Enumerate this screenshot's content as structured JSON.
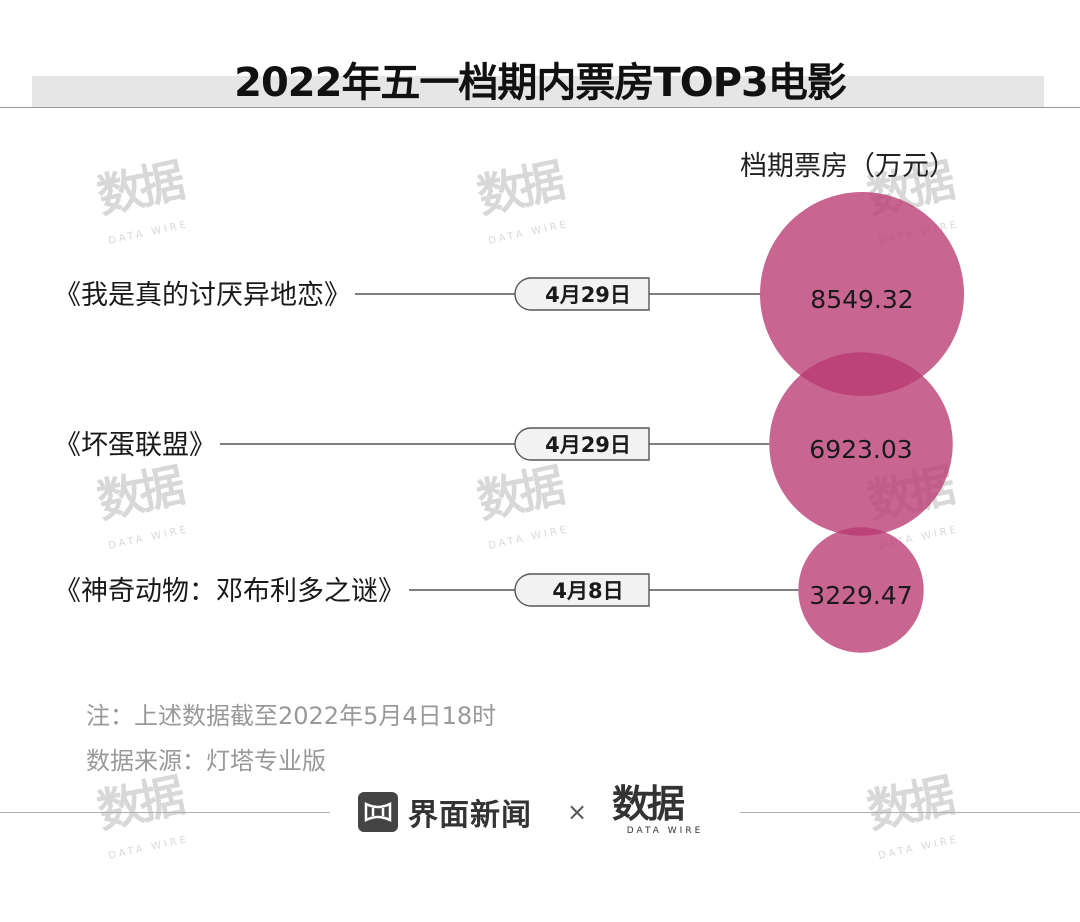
{
  "title": "2022年五一档期内票房TOP3电影",
  "value_header": "档期票房（万元）",
  "notes": {
    "note": "注：上述数据截至2022年5月4日18时",
    "source": "数据来源：灯塔专业版"
  },
  "footer": {
    "brand": "界面新闻",
    "times": "×",
    "logo": "数据",
    "logo_sub": "DATA WIRE"
  },
  "watermark": {
    "mark": "数据",
    "sub": "DATA WIRE"
  },
  "colors": {
    "bubble": "#b83a72",
    "bubble_overlap": "#a52f63",
    "line": "#555555",
    "tag_fill": "#f2f2f2"
  },
  "chart_data": {
    "type": "bubble",
    "unit": "万元",
    "categories": [
      "《我是真的讨厌异地恋》",
      "《坏蛋联盟》",
      "《神奇动物：邓布利多之谜》"
    ],
    "release_dates": [
      "4月29日",
      "4月29日",
      "4月8日"
    ],
    "values": [
      8549.32,
      6923.03,
      3229.47
    ],
    "value_labels": [
      "8549.32",
      "6923.03",
      "3229.47"
    ]
  }
}
